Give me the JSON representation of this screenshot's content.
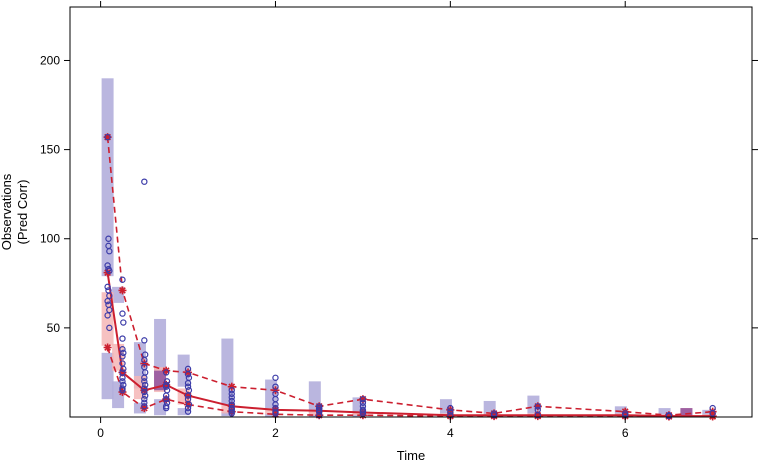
{
  "chart_data": {
    "type": "scatter",
    "title": "",
    "xlabel": "Time",
    "ylabel_lines": [
      "Observations",
      "(Pred Corr)"
    ],
    "xlim": [
      -0.35,
      7.45
    ],
    "ylim": [
      0,
      230
    ],
    "x_ticks": [
      0,
      2,
      4,
      6
    ],
    "y_ticks": [
      50,
      100,
      150,
      200
    ],
    "x_tick_labels": [
      "0",
      "2",
      "4",
      "6"
    ],
    "y_tick_labels": [
      "50",
      "100",
      "150",
      "200"
    ],
    "grid": false,
    "legend": "none",
    "colors": {
      "pi_outer_band": "#b3aedb",
      "pi_median_band": "#f4b6b6",
      "pi_overlap": "#8e4f9c",
      "observed_median": "#cc1f2f",
      "observed_percentiles": "#cc1f2f",
      "observations": "#3b3ba8"
    },
    "pi_upper_bands": [
      {
        "x": 0.08,
        "lo": 79,
        "hi": 190
      },
      {
        "x": 0.2,
        "lo": 64,
        "hi": 73
      },
      {
        "x": 0.45,
        "lo": 16,
        "hi": 42
      },
      {
        "x": 0.68,
        "lo": 26,
        "hi": 55
      },
      {
        "x": 0.95,
        "lo": 17,
        "hi": 35
      },
      {
        "x": 1.45,
        "lo": 7,
        "hi": 44
      },
      {
        "x": 1.95,
        "lo": 4,
        "hi": 21
      },
      {
        "x": 2.45,
        "lo": 2,
        "hi": 20
      },
      {
        "x": 2.95,
        "lo": 2,
        "hi": 11
      },
      {
        "x": 3.95,
        "lo": 2,
        "hi": 10
      },
      {
        "x": 4.45,
        "lo": 1,
        "hi": 9
      },
      {
        "x": 4.95,
        "lo": 2,
        "hi": 12
      },
      {
        "x": 5.95,
        "lo": 1,
        "hi": 6
      },
      {
        "x": 6.45,
        "lo": 0.5,
        "hi": 5
      },
      {
        "x": 6.95,
        "lo": 0.5,
        "hi": 4
      }
    ],
    "pi_median_bands": [
      {
        "x": 0.08,
        "lo": 40,
        "hi": 70
      },
      {
        "x": 0.2,
        "lo": 26,
        "hi": 41
      },
      {
        "x": 0.45,
        "lo": 10,
        "hi": 23
      },
      {
        "x": 0.68,
        "lo": 14,
        "hi": 28
      },
      {
        "x": 0.95,
        "lo": 7,
        "hi": 16
      },
      {
        "x": 1.45,
        "lo": 2,
        "hi": 7
      },
      {
        "x": 1.95,
        "lo": 1.5,
        "hi": 5
      },
      {
        "x": 2.45,
        "lo": 1,
        "hi": 4
      },
      {
        "x": 2.95,
        "lo": 1,
        "hi": 3
      },
      {
        "x": 3.95,
        "lo": 0.5,
        "hi": 2
      },
      {
        "x": 4.45,
        "lo": 0.5,
        "hi": 2
      },
      {
        "x": 4.95,
        "lo": 0.5,
        "hi": 2
      },
      {
        "x": 5.95,
        "lo": 0.5,
        "hi": 2
      },
      {
        "x": 6.45,
        "lo": 0.3,
        "hi": 1.5
      },
      {
        "x": 6.7,
        "lo": 0.3,
        "hi": 5
      },
      {
        "x": 6.95,
        "lo": 0.3,
        "hi": 1.5
      }
    ],
    "pi_lower_bands": [
      {
        "x": 0.08,
        "lo": 10,
        "hi": 36
      },
      {
        "x": 0.2,
        "lo": 5,
        "hi": 20
      },
      {
        "x": 0.45,
        "lo": 2,
        "hi": 8
      },
      {
        "x": 0.68,
        "lo": 1,
        "hi": 10
      },
      {
        "x": 0.95,
        "lo": 1,
        "hi": 5
      },
      {
        "x": 1.45,
        "lo": 0.5,
        "hi": 3
      },
      {
        "x": 1.95,
        "lo": 0.3,
        "hi": 2
      },
      {
        "x": 2.45,
        "lo": 0.2,
        "hi": 1.5
      },
      {
        "x": 2.95,
        "lo": 0.2,
        "hi": 1.5
      }
    ],
    "pi_overlap_bands": [
      {
        "x": 0.68,
        "lo": 15,
        "hi": 26
      },
      {
        "x": 6.7,
        "lo": 0.3,
        "hi": 5
      }
    ],
    "observed_median": {
      "x": [
        0.08,
        0.25,
        0.5,
        0.75,
        1.0,
        1.5,
        2.0,
        2.5,
        3.0,
        4.0,
        4.5,
        5.0,
        6.0,
        6.5,
        7.0
      ],
      "y": [
        81,
        25,
        15,
        18,
        12,
        6,
        4,
        3.5,
        2.5,
        1,
        1,
        1,
        1,
        0.5,
        0.5
      ]
    },
    "observed_p95": {
      "x": [
        0.08,
        0.25,
        0.5,
        0.75,
        1.0,
        1.5,
        2.0,
        2.5,
        3.0,
        4.0,
        4.5,
        5.0,
        6.0,
        6.5,
        7.0
      ],
      "y": [
        157,
        71,
        30,
        26,
        25,
        17,
        15,
        6,
        10,
        4,
        2,
        6,
        3,
        1,
        3
      ]
    },
    "observed_p05": {
      "x": [
        0.08,
        0.25,
        0.5,
        0.75,
        1.0,
        1.5,
        2.0,
        2.5,
        3.0,
        4.0,
        4.5,
        5.0,
        6.0,
        6.5,
        7.0
      ],
      "y": [
        39,
        14,
        5,
        10,
        7,
        3,
        1.5,
        1,
        1,
        0.5,
        0.5,
        0.5,
        0.5,
        0.3,
        0.3
      ]
    },
    "observations": {
      "x": [
        0.08,
        0.09,
        0.09,
        0.1,
        0.08,
        0.09,
        0.1,
        0.08,
        0.09,
        0.1,
        0.08,
        0.09,
        0.1,
        0.08,
        0.1,
        0.25,
        0.25,
        0.26,
        0.25,
        0.25,
        0.26,
        0.25,
        0.25,
        0.26,
        0.25,
        0.25,
        0.25,
        0.26,
        0.25,
        0.25,
        0.5,
        0.5,
        0.51,
        0.5,
        0.5,
        0.51,
        0.5,
        0.5,
        0.51,
        0.5,
        0.5,
        0.51,
        0.5,
        0.5,
        0.5,
        0.75,
        0.76,
        0.75,
        0.75,
        0.76,
        0.75,
        0.75,
        0.76,
        0.75,
        0.75,
        1.0,
        1.0,
        1.01,
        1.0,
        1.0,
        1.01,
        1.0,
        1.0,
        1.01,
        1.0,
        1.0,
        1.5,
        1.5,
        1.5,
        1.5,
        1.5,
        1.5,
        1.5,
        1.5,
        1.5,
        2.0,
        2.0,
        2.0,
        2.0,
        2.0,
        2.0,
        2.0,
        2.0,
        2.5,
        2.5,
        2.5,
        2.5,
        2.5,
        3.0,
        3.0,
        3.0,
        3.0,
        3.0,
        3.0,
        4.0,
        4.0,
        4.0,
        4.5,
        4.5,
        5.0,
        5.0,
        5.0,
        6.0,
        6.0,
        6.5,
        6.5,
        7.0,
        7.0
      ],
      "y": [
        157,
        100,
        96,
        93,
        85,
        83,
        82,
        73,
        71,
        68,
        65,
        63,
        60,
        57,
        50,
        77,
        58,
        53,
        44,
        38,
        36,
        34,
        30,
        27,
        25,
        22,
        20,
        18,
        16,
        15,
        132,
        43,
        35,
        32,
        28,
        25,
        22,
        20,
        18,
        16,
        14,
        12,
        10,
        8,
        6,
        25,
        20,
        18,
        17,
        15,
        12,
        10,
        8,
        6,
        5,
        27,
        24,
        22,
        19,
        17,
        15,
        12,
        10,
        7,
        5,
        3,
        15,
        13,
        11,
        9,
        7,
        5,
        4,
        3,
        2,
        22,
        17,
        13,
        10,
        7,
        5,
        3,
        2,
        6,
        5,
        4,
        3,
        1,
        10,
        8,
        6,
        4,
        3,
        2,
        5,
        3,
        1,
        2,
        1,
        6,
        4,
        1,
        2,
        1,
        1,
        0.5,
        5,
        2
      ]
    }
  }
}
